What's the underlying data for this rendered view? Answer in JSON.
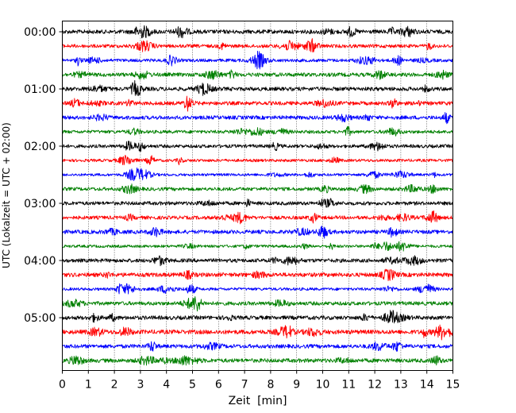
{
  "chart_data": {
    "type": "line",
    "title": "",
    "xlabel": "Zeit  [min]",
    "ylabel": "UTC (Lokalzeit = UTC + 02:00)",
    "xlim": [
      0,
      15
    ],
    "x_ticks": [
      0,
      1,
      2,
      3,
      4,
      5,
      6,
      7,
      8,
      9,
      10,
      11,
      12,
      13,
      14,
      15
    ],
    "y_tick_labels": [
      "00:00",
      "01:00",
      "02:00",
      "03:00",
      "04:00",
      "05:00"
    ],
    "trace_minutes": 15,
    "trace_colors": [
      "#000000",
      "#ff0000",
      "#0000ff",
      "#008000"
    ],
    "trace_start_times": [
      "00:00",
      "00:15",
      "00:30",
      "00:45",
      "01:00",
      "01:15",
      "01:30",
      "01:45",
      "02:00",
      "02:15",
      "02:30",
      "02:45",
      "03:00",
      "03:15",
      "03:30",
      "03:45",
      "04:00",
      "04:15",
      "04:30",
      "04:45",
      "05:00",
      "05:15",
      "05:30",
      "05:45"
    ],
    "grid": "vertical dotted at each minute",
    "legend": "none"
  }
}
